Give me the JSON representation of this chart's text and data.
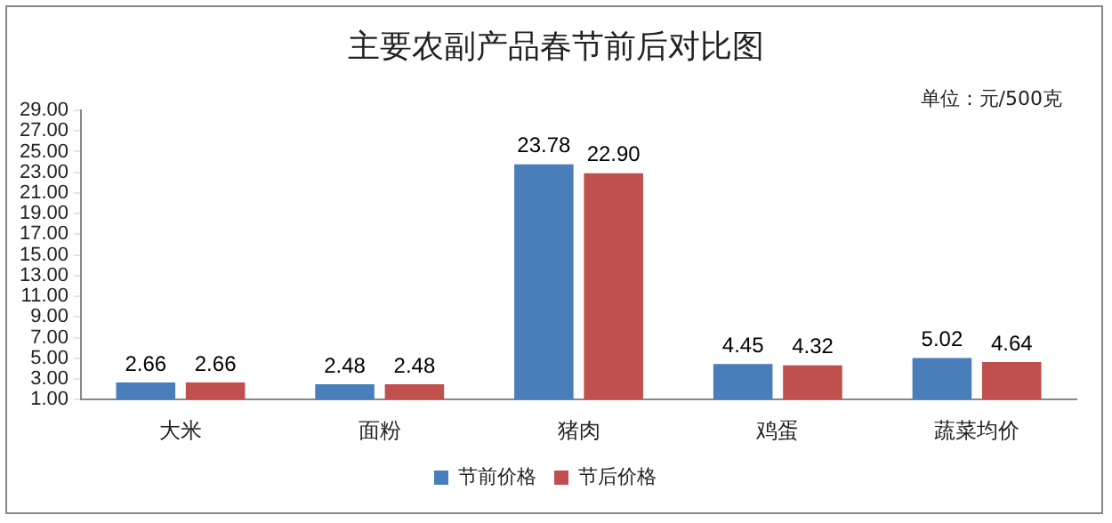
{
  "chart_data": {
    "type": "bar",
    "title": "主要农副产品春节前后对比图",
    "annotations": [
      "单位：元/500克"
    ],
    "categories": [
      "大米",
      "面粉",
      "猪肉",
      "鸡蛋",
      "蔬菜均价"
    ],
    "series": [
      {
        "name": "节前价格",
        "color": "#4a7ebb",
        "values": [
          2.66,
          2.48,
          23.78,
          4.45,
          5.02
        ],
        "value_labels": [
          "2.66",
          "2.48",
          "23.78",
          "4.45",
          "5.02"
        ]
      },
      {
        "name": "节后价格",
        "color": "#c0504d",
        "values": [
          2.66,
          2.48,
          22.9,
          4.32,
          4.64
        ],
        "value_labels": [
          "2.66",
          "2.48",
          "22.90",
          "4.32",
          "4.64"
        ]
      }
    ],
    "ylim": [
      1,
      29
    ],
    "yticks": [
      {
        "value": 1,
        "label": "1.00"
      },
      {
        "value": 3,
        "label": "3.00"
      },
      {
        "value": 5,
        "label": "5.00"
      },
      {
        "value": 7,
        "label": "7.00"
      },
      {
        "value": 9,
        "label": "9.00"
      },
      {
        "value": 11,
        "label": "11.00"
      },
      {
        "value": 13,
        "label": "13.00"
      },
      {
        "value": 15,
        "label": "15.00"
      },
      {
        "value": 17,
        "label": "17.00"
      },
      {
        "value": 19,
        "label": "19.00"
      },
      {
        "value": 21,
        "label": "21.00"
      },
      {
        "value": 23,
        "label": "23.00"
      },
      {
        "value": 25,
        "label": "25.00"
      },
      {
        "value": 27,
        "label": "27.00"
      },
      {
        "value": 29,
        "label": "29.00"
      }
    ],
    "grid": false,
    "legend": "bottom"
  }
}
